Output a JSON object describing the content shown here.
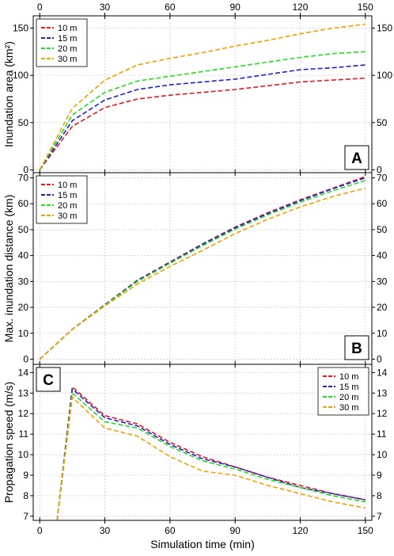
{
  "x_axis": {
    "label": "Simulation time (min)",
    "ticks": [
      "0",
      "30",
      "60",
      "90",
      "120",
      "150"
    ]
  },
  "legend_labels": [
    "10 m",
    "15 m",
    "20 m",
    "30 m"
  ],
  "colors": {
    "10 m": "#e41a1c",
    "15 m": "#1f1fd6",
    "20 m": "#22dd22",
    "30 m": "#f5a000"
  },
  "chart_data": [
    {
      "panel": "A",
      "type": "line",
      "ylabel": "Inundation area (km²)",
      "xlim": [
        -3,
        153
      ],
      "ylim": [
        -3,
        163
      ],
      "yticks": [
        "0",
        "50",
        "100",
        "150"
      ],
      "legend_position": "top-left",
      "x": [
        0,
        15,
        30,
        45,
        60,
        75,
        90,
        105,
        120,
        135,
        150
      ],
      "series": [
        {
          "name": "10 m",
          "values": [
            0,
            46,
            66,
            75,
            79,
            82,
            85,
            89,
            93,
            95,
            97
          ]
        },
        {
          "name": "15 m",
          "values": [
            0,
            52,
            74,
            85,
            90,
            93,
            96,
            101,
            106,
            108,
            111
          ]
        },
        {
          "name": "20 m",
          "values": [
            0,
            58,
            82,
            94,
            99,
            104,
            109,
            114,
            119,
            123,
            125
          ]
        },
        {
          "name": "30 m",
          "values": [
            0,
            65,
            95,
            111,
            118,
            124,
            131,
            137,
            144,
            150,
            154
          ]
        }
      ]
    },
    {
      "panel": "B",
      "type": "line",
      "ylabel": "Max. inundation distance (km)",
      "xlim": [
        -3,
        153
      ],
      "ylim": [
        -2,
        72
      ],
      "yticks": [
        "0",
        "10",
        "20",
        "30",
        "40",
        "50",
        "60",
        "70"
      ],
      "legend_position": "top-left",
      "x": [
        0,
        15,
        30,
        45,
        60,
        75,
        90,
        105,
        120,
        135,
        150
      ],
      "series": [
        {
          "name": "10 m",
          "values": [
            0,
            11.5,
            21,
            30.5,
            37.5,
            44.5,
            51,
            56.5,
            61.5,
            66,
            70.5
          ]
        },
        {
          "name": "15 m",
          "values": [
            0,
            11.5,
            21,
            30.3,
            37.3,
            44.3,
            50.7,
            56.2,
            61.2,
            65.8,
            70
          ]
        },
        {
          "name": "20 m",
          "values": [
            0,
            11.5,
            20.8,
            30,
            37,
            43.8,
            50.2,
            55.7,
            60.6,
            65,
            69
          ]
        },
        {
          "name": "30 m",
          "values": [
            0,
            11.5,
            20.5,
            29,
            35.8,
            42,
            48.5,
            54,
            58.8,
            62.8,
            66
          ]
        }
      ]
    },
    {
      "panel": "C",
      "type": "line",
      "ylabel": "Propagation speed (m/s)",
      "xlim": [
        -3,
        153
      ],
      "ylim": [
        6.8,
        14.4
      ],
      "yticks": [
        "7",
        "8",
        "9",
        "10",
        "11",
        "12",
        "13",
        "14"
      ],
      "legend_position": "top-right",
      "x": [
        8,
        15,
        30,
        45,
        60,
        75,
        90,
        105,
        120,
        135,
        150
      ],
      "series": [
        {
          "name": "10 m",
          "values": [
            6.8,
            13.3,
            11.9,
            11.5,
            10.6,
            9.9,
            9.4,
            8.9,
            8.5,
            8.1,
            7.8
          ]
        },
        {
          "name": "15 m",
          "values": [
            6.8,
            13.2,
            11.8,
            11.4,
            10.5,
            9.8,
            9.4,
            8.9,
            8.4,
            8.1,
            7.8
          ]
        },
        {
          "name": "20 m",
          "values": [
            6.8,
            13.0,
            11.6,
            11.3,
            10.4,
            9.7,
            9.3,
            8.8,
            8.4,
            8.0,
            7.7
          ]
        },
        {
          "name": "30 m",
          "values": [
            6.8,
            12.8,
            11.3,
            10.9,
            9.9,
            9.2,
            9.0,
            8.5,
            8.1,
            7.7,
            7.4
          ]
        }
      ]
    }
  ]
}
